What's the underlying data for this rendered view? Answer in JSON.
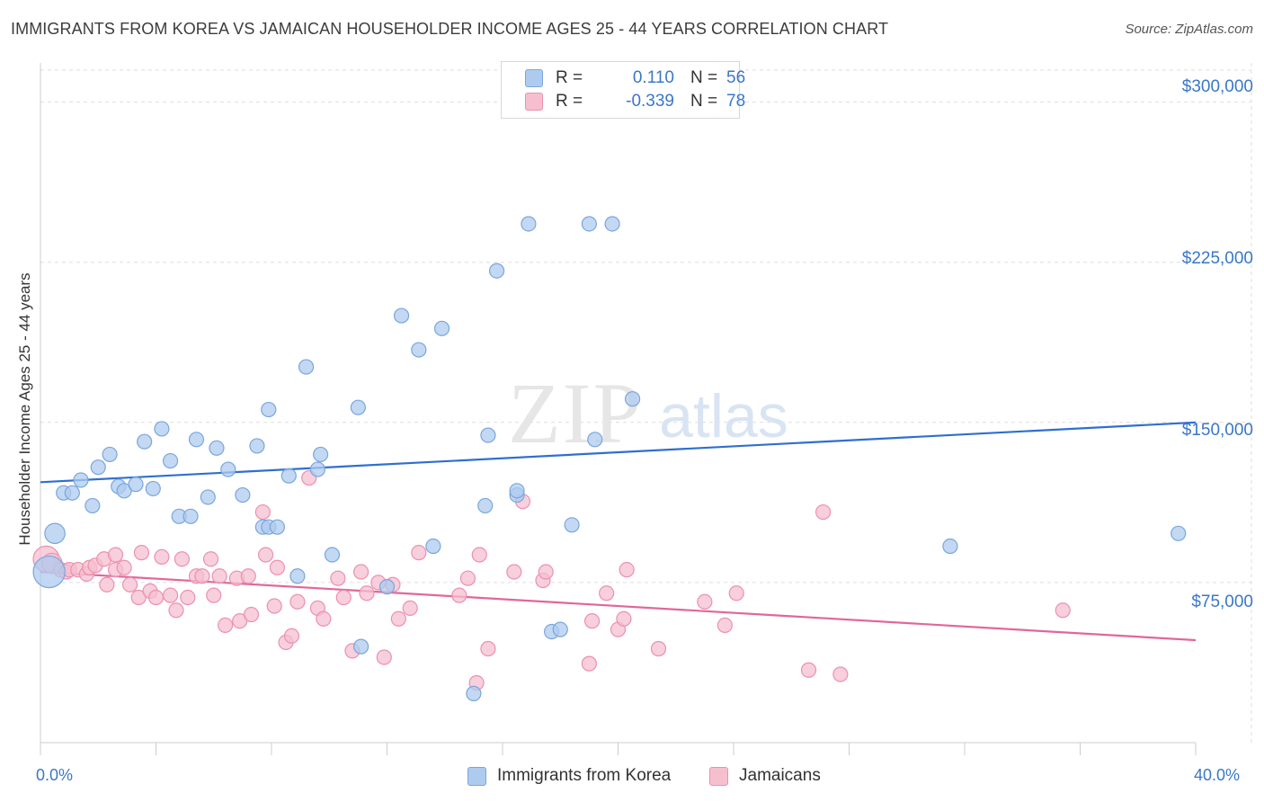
{
  "title": "IMMIGRANTS FROM KOREA VS JAMAICAN HOUSEHOLDER INCOME AGES 25 - 44 YEARS CORRELATION CHART",
  "source": "Source: ZipAtlas.com",
  "watermark": {
    "zip": "ZIP",
    "atlas": "atlas"
  },
  "legend": {
    "r_label": "R =",
    "n_label": "N =",
    "rows": [
      {
        "r": "0.110",
        "n": "56"
      },
      {
        "r": "-0.339",
        "n": "78"
      }
    ]
  },
  "colors": {
    "blue_fill": "#aecbef",
    "blue_stroke": "#7aa6dc",
    "blue_line": "#2f6fcf",
    "pink_fill": "#f6bfd0",
    "pink_stroke": "#ec90ae",
    "pink_line": "#e0679a",
    "axis_text": "#3a77c8",
    "grid": "#dddddd"
  },
  "chart_data": {
    "type": "scatter",
    "title": "IMMIGRANTS FROM KOREA VS JAMAICAN HOUSEHOLDER INCOME AGES 25 - 44 YEARS CORRELATION CHART",
    "xlabel": "",
    "ylabel": "Householder Income Ages 25 - 44 years",
    "xlim": [
      0,
      40
    ],
    "ylim": [
      0,
      315000
    ],
    "x_tick_labels": [
      "0.0%",
      "40.0%"
    ],
    "y_ticks": [
      75000,
      150000,
      225000,
      300000
    ],
    "y_tick_labels": [
      "$75,000",
      "$150,000",
      "$225,000",
      "$300,000"
    ],
    "grid": true,
    "legend_position": "top-center",
    "series": [
      {
        "name": "Immigrants from Korea",
        "r": 0.11,
        "n": 56,
        "trend": {
          "x": [
            0,
            40
          ],
          "y": [
            122000,
            150000
          ]
        },
        "points": [
          {
            "x": 0.3,
            "y": 80000,
            "s": 2.2
          },
          {
            "x": 0.5,
            "y": 98000,
            "s": 1.4
          },
          {
            "x": 0.8,
            "y": 117000,
            "s": 1
          },
          {
            "x": 1.1,
            "y": 117000,
            "s": 1
          },
          {
            "x": 1.4,
            "y": 123000,
            "s": 1
          },
          {
            "x": 1.8,
            "y": 111000,
            "s": 1
          },
          {
            "x": 2.0,
            "y": 129000,
            "s": 1
          },
          {
            "x": 2.4,
            "y": 135000,
            "s": 1
          },
          {
            "x": 2.7,
            "y": 120000,
            "s": 1
          },
          {
            "x": 2.9,
            "y": 118000,
            "s": 1
          },
          {
            "x": 3.3,
            "y": 121000,
            "s": 1
          },
          {
            "x": 3.6,
            "y": 141000,
            "s": 1
          },
          {
            "x": 3.9,
            "y": 119000,
            "s": 1
          },
          {
            "x": 4.2,
            "y": 147000,
            "s": 1
          },
          {
            "x": 4.5,
            "y": 132000,
            "s": 1
          },
          {
            "x": 4.8,
            "y": 106000,
            "s": 1
          },
          {
            "x": 5.2,
            "y": 106000,
            "s": 1
          },
          {
            "x": 5.4,
            "y": 142000,
            "s": 1
          },
          {
            "x": 5.8,
            "y": 115000,
            "s": 1
          },
          {
            "x": 6.1,
            "y": 138000,
            "s": 1
          },
          {
            "x": 6.5,
            "y": 128000,
            "s": 1
          },
          {
            "x": 7.0,
            "y": 116000,
            "s": 1
          },
          {
            "x": 7.5,
            "y": 139000,
            "s": 1
          },
          {
            "x": 7.7,
            "y": 101000,
            "s": 1
          },
          {
            "x": 7.9,
            "y": 101000,
            "s": 1
          },
          {
            "x": 8.2,
            "y": 101000,
            "s": 1
          },
          {
            "x": 8.6,
            "y": 125000,
            "s": 1
          },
          {
            "x": 7.9,
            "y": 156000,
            "s": 1
          },
          {
            "x": 8.9,
            "y": 78000,
            "s": 1
          },
          {
            "x": 9.2,
            "y": 176000,
            "s": 1
          },
          {
            "x": 9.6,
            "y": 128000,
            "s": 1
          },
          {
            "x": 9.7,
            "y": 135000,
            "s": 1
          },
          {
            "x": 10.1,
            "y": 88000,
            "s": 1
          },
          {
            "x": 11.0,
            "y": 157000,
            "s": 1
          },
          {
            "x": 11.1,
            "y": 45000,
            "s": 1
          },
          {
            "x": 12.0,
            "y": 73000,
            "s": 1
          },
          {
            "x": 12.5,
            "y": 200000,
            "s": 1
          },
          {
            "x": 13.1,
            "y": 184000,
            "s": 1
          },
          {
            "x": 13.6,
            "y": 92000,
            "s": 1
          },
          {
            "x": 13.9,
            "y": 194000,
            "s": 1
          },
          {
            "x": 15.0,
            "y": 23000,
            "s": 1
          },
          {
            "x": 15.4,
            "y": 111000,
            "s": 1
          },
          {
            "x": 15.5,
            "y": 144000,
            "s": 1
          },
          {
            "x": 15.8,
            "y": 221000,
            "s": 1
          },
          {
            "x": 16.5,
            "y": 116000,
            "s": 1
          },
          {
            "x": 16.5,
            "y": 118000,
            "s": 1
          },
          {
            "x": 16.9,
            "y": 243000,
            "s": 1
          },
          {
            "x": 17.7,
            "y": 52000,
            "s": 1
          },
          {
            "x": 18.0,
            "y": 53000,
            "s": 1
          },
          {
            "x": 18.4,
            "y": 102000,
            "s": 1
          },
          {
            "x": 19.0,
            "y": 243000,
            "s": 1
          },
          {
            "x": 19.2,
            "y": 142000,
            "s": 1
          },
          {
            "x": 19.8,
            "y": 243000,
            "s": 1
          },
          {
            "x": 20.5,
            "y": 161000,
            "s": 1
          },
          {
            "x": 31.5,
            "y": 92000,
            "s": 1
          },
          {
            "x": 39.4,
            "y": 98000,
            "s": 1
          }
        ]
      },
      {
        "name": "Jamaicans",
        "r": -0.339,
        "n": 78,
        "trend": {
          "x": [
            0,
            40
          ],
          "y": [
            80000,
            48000
          ]
        },
        "points": [
          {
            "x": 0.2,
            "y": 86000,
            "s": 1.8
          },
          {
            "x": 0.4,
            "y": 84000,
            "s": 1.4
          },
          {
            "x": 0.7,
            "y": 81000,
            "s": 1
          },
          {
            "x": 0.9,
            "y": 80000,
            "s": 1
          },
          {
            "x": 1.0,
            "y": 81000,
            "s": 1
          },
          {
            "x": 1.3,
            "y": 81000,
            "s": 1
          },
          {
            "x": 1.6,
            "y": 79000,
            "s": 1
          },
          {
            "x": 1.7,
            "y": 82000,
            "s": 1
          },
          {
            "x": 1.9,
            "y": 83000,
            "s": 1
          },
          {
            "x": 2.2,
            "y": 86000,
            "s": 1
          },
          {
            "x": 2.3,
            "y": 74000,
            "s": 1
          },
          {
            "x": 2.6,
            "y": 81000,
            "s": 1
          },
          {
            "x": 2.6,
            "y": 88000,
            "s": 1
          },
          {
            "x": 2.9,
            "y": 82000,
            "s": 1
          },
          {
            "x": 3.1,
            "y": 74000,
            "s": 1
          },
          {
            "x": 3.4,
            "y": 68000,
            "s": 1
          },
          {
            "x": 3.5,
            "y": 89000,
            "s": 1
          },
          {
            "x": 3.8,
            "y": 71000,
            "s": 1
          },
          {
            "x": 4.0,
            "y": 68000,
            "s": 1
          },
          {
            "x": 4.2,
            "y": 87000,
            "s": 1
          },
          {
            "x": 4.5,
            "y": 69000,
            "s": 1
          },
          {
            "x": 4.7,
            "y": 62000,
            "s": 1
          },
          {
            "x": 4.9,
            "y": 86000,
            "s": 1
          },
          {
            "x": 5.1,
            "y": 68000,
            "s": 1
          },
          {
            "x": 5.4,
            "y": 78000,
            "s": 1
          },
          {
            "x": 5.6,
            "y": 78000,
            "s": 1
          },
          {
            "x": 5.9,
            "y": 86000,
            "s": 1
          },
          {
            "x": 6.0,
            "y": 69000,
            "s": 1
          },
          {
            "x": 6.2,
            "y": 78000,
            "s": 1
          },
          {
            "x": 6.4,
            "y": 55000,
            "s": 1
          },
          {
            "x": 6.8,
            "y": 77000,
            "s": 1
          },
          {
            "x": 6.9,
            "y": 57000,
            "s": 1
          },
          {
            "x": 7.2,
            "y": 78000,
            "s": 1
          },
          {
            "x": 7.3,
            "y": 60000,
            "s": 1
          },
          {
            "x": 7.7,
            "y": 108000,
            "s": 1
          },
          {
            "x": 7.8,
            "y": 88000,
            "s": 1
          },
          {
            "x": 8.2,
            "y": 82000,
            "s": 1
          },
          {
            "x": 8.1,
            "y": 64000,
            "s": 1
          },
          {
            "x": 8.5,
            "y": 47000,
            "s": 1
          },
          {
            "x": 8.7,
            "y": 50000,
            "s": 1
          },
          {
            "x": 8.9,
            "y": 66000,
            "s": 1
          },
          {
            "x": 9.3,
            "y": 124000,
            "s": 1
          },
          {
            "x": 9.6,
            "y": 63000,
            "s": 1
          },
          {
            "x": 9.8,
            "y": 58000,
            "s": 1
          },
          {
            "x": 10.3,
            "y": 77000,
            "s": 1
          },
          {
            "x": 10.5,
            "y": 68000,
            "s": 1
          },
          {
            "x": 10.8,
            "y": 43000,
            "s": 1
          },
          {
            "x": 11.1,
            "y": 80000,
            "s": 1
          },
          {
            "x": 11.3,
            "y": 70000,
            "s": 1
          },
          {
            "x": 11.7,
            "y": 75000,
            "s": 1
          },
          {
            "x": 11.9,
            "y": 40000,
            "s": 1
          },
          {
            "x": 12.2,
            "y": 74000,
            "s": 1
          },
          {
            "x": 12.4,
            "y": 58000,
            "s": 1
          },
          {
            "x": 12.8,
            "y": 63000,
            "s": 1
          },
          {
            "x": 13.1,
            "y": 89000,
            "s": 1
          },
          {
            "x": 14.5,
            "y": 69000,
            "s": 1
          },
          {
            "x": 14.8,
            "y": 77000,
            "s": 1
          },
          {
            "x": 15.1,
            "y": 28000,
            "s": 1
          },
          {
            "x": 15.2,
            "y": 88000,
            "s": 1
          },
          {
            "x": 15.5,
            "y": 44000,
            "s": 1
          },
          {
            "x": 16.4,
            "y": 80000,
            "s": 1
          },
          {
            "x": 16.7,
            "y": 113000,
            "s": 1
          },
          {
            "x": 17.4,
            "y": 76000,
            "s": 1
          },
          {
            "x": 17.5,
            "y": 80000,
            "s": 1
          },
          {
            "x": 19.0,
            "y": 37000,
            "s": 1
          },
          {
            "x": 19.1,
            "y": 57000,
            "s": 1
          },
          {
            "x": 19.6,
            "y": 70000,
            "s": 1
          },
          {
            "x": 20.0,
            "y": 53000,
            "s": 1
          },
          {
            "x": 20.2,
            "y": 58000,
            "s": 1
          },
          {
            "x": 20.3,
            "y": 81000,
            "s": 1
          },
          {
            "x": 21.4,
            "y": 44000,
            "s": 1
          },
          {
            "x": 23.0,
            "y": 66000,
            "s": 1
          },
          {
            "x": 23.7,
            "y": 55000,
            "s": 1
          },
          {
            "x": 24.1,
            "y": 70000,
            "s": 1
          },
          {
            "x": 26.6,
            "y": 34000,
            "s": 1
          },
          {
            "x": 27.1,
            "y": 108000,
            "s": 1
          },
          {
            "x": 27.7,
            "y": 32000,
            "s": 1
          },
          {
            "x": 35.4,
            "y": 62000,
            "s": 1
          }
        ]
      }
    ]
  }
}
